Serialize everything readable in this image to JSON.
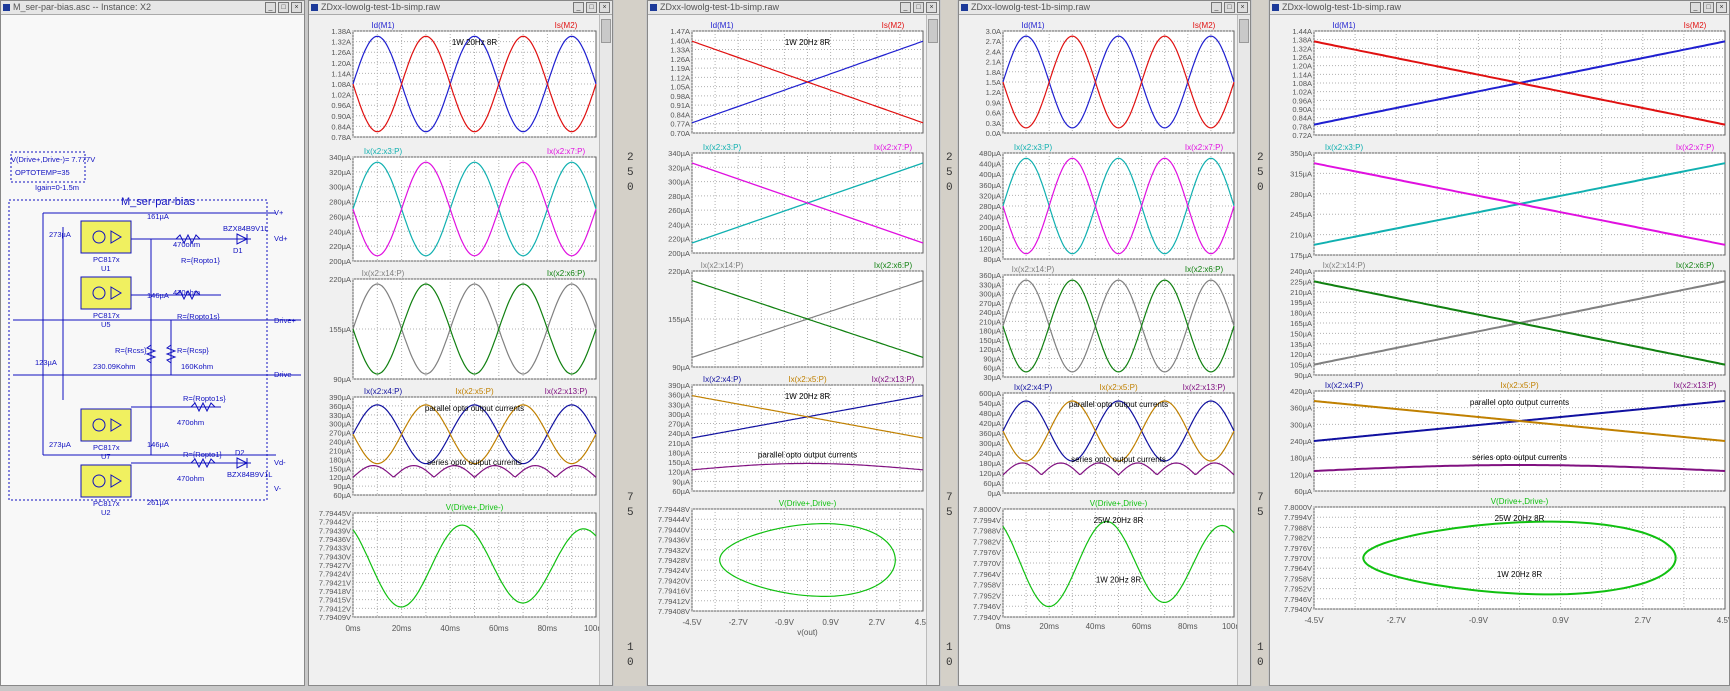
{
  "schematic": {
    "title": "M_ser-par-bias.asc -- Instance: X2",
    "top_label": "V(Drive+,Drive-)= 7.777V",
    "param1": "OPTOTEMP=35",
    "param2": "Igain=0-1.5m",
    "heading": "M_ser-par-bias",
    "labels": {
      "i1": "273µA",
      "i2": "161µA",
      "i3": "146µA",
      "i4": "123µA",
      "i5": "273µA",
      "i6": "146µA",
      "i7": "261µA",
      "u1": "PC817x",
      "u1n": "U1",
      "u5": "PC817x",
      "u5n": "U5",
      "u7": "PC817x",
      "u7n": "U7",
      "u2": "PC817x",
      "u2n": "U2",
      "r1": "470ohm",
      "r1v": "R={Ropto1}",
      "r2": "470ohm",
      "r2v": "R={Ropto1s}",
      "r3": "R={Rcss}",
      "r3v": "230.09Kohm",
      "r4": "R={Rcsp}",
      "r4v": "160Kohm",
      "r5v": "R={Ropto1s}",
      "r5": "470ohm",
      "r6v": "R={Ropto1}",
      "r6": "470ohm",
      "d1": "BZX84B9V1L",
      "d1n": "D1",
      "d2": "D2",
      "d2n": "BZX84B9V1L",
      "vp": "V+",
      "vdp": "Vd+",
      "dp": "Drive+",
      "dm": "Drive-",
      "vdm": "Vd-",
      "vm": "V-"
    }
  },
  "waves": [
    {
      "title": "ZDxx-lowolg-test-1b-simp.raw",
      "x_axis": "time",
      "x_ticks": [
        "0ms",
        "20ms",
        "40ms",
        "60ms",
        "80ms",
        "100ms"
      ],
      "x_label": "",
      "panes": [
        {
          "traces": [
            {
              "name": "Id(M1)",
              "color": "#1f1fd0"
            },
            {
              "name": "Is(M2)",
              "color": "#e01010"
            }
          ],
          "ticks": [
            "1.38A",
            "1.32A",
            "1.26A",
            "1.20A",
            "1.14A",
            "1.08A",
            "1.02A",
            "0.96A",
            "0.90A",
            "0.84A",
            "0.78A"
          ],
          "annotations": [
            "1W 20Hz 8R"
          ]
        },
        {
          "traces": [
            {
              "name": "Ix(x2:x3:P)",
              "color": "#10b0b0"
            },
            {
              "name": "Ix(x2:x7:P)",
              "color": "#e010e0"
            }
          ],
          "ticks": [
            "340µA",
            "320µA",
            "300µA",
            "280µA",
            "260µA",
            "240µA",
            "220µA",
            "200µA"
          ],
          "annotations": []
        },
        {
          "traces": [
            {
              "name": "Ix(x2:x14:P)",
              "color": "#808080"
            },
            {
              "name": "Ix(x2:x6:P)",
              "color": "#108010"
            }
          ],
          "ticks": [
            "220µA",
            "155µA",
            "90µA"
          ],
          "annotations": []
        },
        {
          "traces": [
            {
              "name": "Ix(x2:x4:P)",
              "color": "#1010a0"
            },
            {
              "name": "Ix(x2:x5:P)",
              "color": "#c08000"
            },
            {
              "name": "Ix(x2:x13:P)",
              "color": "#801080"
            }
          ],
          "ticks": [
            "390µA",
            "360µA",
            "330µA",
            "300µA",
            "270µA",
            "240µA",
            "210µA",
            "180µA",
            "150µA",
            "120µA",
            "90µA",
            "60µA"
          ],
          "annotations": [
            "parallel opto output currents",
            "series opto output currents"
          ]
        },
        {
          "traces": [
            {
              "name": "V(Drive+,Drive-)",
              "color": "#10c010"
            }
          ],
          "ticks": [
            "7.79445V",
            "7.79442V",
            "7.79439V",
            "7.79436V",
            "7.79433V",
            "7.79430V",
            "7.79427V",
            "7.79424V",
            "7.79421V",
            "7.79418V",
            "7.79415V",
            "7.79412V",
            "7.79409V"
          ],
          "annotations": []
        }
      ]
    },
    {
      "title": "ZDxx-lowolg-test-1b-simp.raw",
      "x_axis": "xy",
      "x_ticks": [
        "-4.5V",
        "-2.7V",
        "-0.9V",
        "0.9V",
        "2.7V",
        "4.5V"
      ],
      "x_label": "v(out)",
      "panes": [
        {
          "traces": [
            {
              "name": "Id(M1)",
              "color": "#1f1fd0"
            },
            {
              "name": "Is(M2)",
              "color": "#e01010"
            }
          ],
          "ticks": [
            "1.47A",
            "1.40A",
            "1.33A",
            "1.26A",
            "1.19A",
            "1.12A",
            "1.05A",
            "0.98A",
            "0.91A",
            "0.84A",
            "0.77A",
            "0.70A"
          ],
          "annotations": [
            "1W 20Hz 8R"
          ]
        },
        {
          "traces": [
            {
              "name": "Ix(x2:x3:P)",
              "color": "#10b0b0"
            },
            {
              "name": "Ix(x2:x7:P)",
              "color": "#e010e0"
            }
          ],
          "ticks": [
            "340µA",
            "320µA",
            "300µA",
            "280µA",
            "260µA",
            "240µA",
            "220µA",
            "200µA"
          ],
          "annotations": []
        },
        {
          "traces": [
            {
              "name": "Ix(x2:x14:P)",
              "color": "#808080"
            },
            {
              "name": "Ix(x2:x6:P)",
              "color": "#108010"
            }
          ],
          "ticks": [
            "220µA",
            "155µA",
            "90µA"
          ],
          "annotations": []
        },
        {
          "traces": [
            {
              "name": "Ix(x2:x4:P)",
              "color": "#1010a0"
            },
            {
              "name": "Ix(x2:x5:P)",
              "color": "#c08000"
            },
            {
              "name": "Ix(x2:x13:P)",
              "color": "#801080"
            }
          ],
          "ticks": [
            "390µA",
            "360µA",
            "330µA",
            "300µA",
            "270µA",
            "240µA",
            "210µA",
            "180µA",
            "150µA",
            "120µA",
            "90µA",
            "60µA"
          ],
          "annotations": [
            "1W 20Hz 8R",
            "parallel opto output currents",
            "series opto output currents"
          ]
        },
        {
          "traces": [
            {
              "name": "V(Drive+,Drive-)",
              "color": "#10c010"
            }
          ],
          "ticks": [
            "7.79448V",
            "7.79444V",
            "7.79440V",
            "7.79436V",
            "7.79432V",
            "7.79428V",
            "7.79424V",
            "7.79420V",
            "7.79416V",
            "7.79412V",
            "7.79408V"
          ],
          "annotations": []
        }
      ]
    },
    {
      "title": "ZDxx-lowolg-test-1b-simp.raw",
      "x_axis": "time",
      "x_ticks": [
        "0ms",
        "20ms",
        "40ms",
        "60ms",
        "80ms",
        "100ms"
      ],
      "x_label": "",
      "panes": [
        {
          "traces": [
            {
              "name": "Id(M1)",
              "color": "#1f1fd0"
            },
            {
              "name": "Is(M2)",
              "color": "#e01010"
            }
          ],
          "ticks": [
            "3.0A",
            "2.7A",
            "2.4A",
            "2.1A",
            "1.8A",
            "1.5A",
            "1.2A",
            "0.9A",
            "0.6A",
            "0.3A",
            "0.0A"
          ],
          "annotations": []
        },
        {
          "traces": [
            {
              "name": "Ix(x2:x3:P)",
              "color": "#10b0b0"
            },
            {
              "name": "Ix(x2:x7:P)",
              "color": "#e010e0"
            }
          ],
          "ticks": [
            "480µA",
            "440µA",
            "400µA",
            "360µA",
            "320µA",
            "280µA",
            "240µA",
            "200µA",
            "160µA",
            "120µA",
            "80µA"
          ],
          "annotations": []
        },
        {
          "traces": [
            {
              "name": "Ix(x2:x14:P)",
              "color": "#808080"
            },
            {
              "name": "Ix(x2:x6:P)",
              "color": "#108010"
            }
          ],
          "ticks": [
            "360µA",
            "330µA",
            "300µA",
            "270µA",
            "240µA",
            "210µA",
            "180µA",
            "150µA",
            "120µA",
            "90µA",
            "60µA",
            "30µA"
          ],
          "annotations": []
        },
        {
          "traces": [
            {
              "name": "Ix(x2:x4:P)",
              "color": "#1010a0"
            },
            {
              "name": "Ix(x2:x5:P)",
              "color": "#c08000"
            },
            {
              "name": "Ix(x2:x13:P)",
              "color": "#801080"
            }
          ],
          "ticks": [
            "600µA",
            "540µA",
            "480µA",
            "420µA",
            "360µA",
            "300µA",
            "240µA",
            "180µA",
            "120µA",
            "60µA",
            "0µA"
          ],
          "annotations": [
            "parallel opto output currents",
            "series opto output currents"
          ]
        },
        {
          "traces": [
            {
              "name": "V(Drive+,Drive-)",
              "color": "#10c010"
            }
          ],
          "ticks": [
            "7.8000V",
            "7.7994V",
            "7.7988V",
            "7.7982V",
            "7.7976V",
            "7.7970V",
            "7.7964V",
            "7.7958V",
            "7.7952V",
            "7.7946V",
            "7.7940V"
          ],
          "annotations": [
            "25W 20Hz 8R",
            "1W 20Hz 8R"
          ]
        }
      ]
    },
    {
      "title": "ZDxx-lowolg-test-1b-simp.raw",
      "x_axis": "xy",
      "x_ticks": [
        "-4.5V",
        "-2.7V",
        "-0.9V",
        "0.9V",
        "2.7V",
        "4.5V"
      ],
      "x_label": "",
      "panes": [
        {
          "traces": [
            {
              "name": "Id(M1)",
              "color": "#1f1fd0"
            },
            {
              "name": "Is(M2)",
              "color": "#e01010"
            }
          ],
          "ticks": [
            "1.44A",
            "1.38A",
            "1.32A",
            "1.26A",
            "1.20A",
            "1.14A",
            "1.08A",
            "1.02A",
            "0.96A",
            "0.90A",
            "0.84A",
            "0.78A",
            "0.72A"
          ],
          "annotations": []
        },
        {
          "traces": [
            {
              "name": "Ix(x2:x3:P)",
              "color": "#10b0b0"
            },
            {
              "name": "Ix(x2:x7:P)",
              "color": "#e010e0"
            }
          ],
          "ticks": [
            "350µA",
            "315µA",
            "280µA",
            "245µA",
            "210µA",
            "175µA"
          ],
          "annotations": []
        },
        {
          "traces": [
            {
              "name": "Ix(x2:x14:P)",
              "color": "#808080"
            },
            {
              "name": "Ix(x2:x6:P)",
              "color": "#108010"
            }
          ],
          "ticks": [
            "240µA",
            "225µA",
            "210µA",
            "195µA",
            "180µA",
            "165µA",
            "150µA",
            "135µA",
            "120µA",
            "105µA",
            "90µA"
          ],
          "annotations": []
        },
        {
          "traces": [
            {
              "name": "Ix(x2:x4:P)",
              "color": "#1010a0"
            },
            {
              "name": "Ix(x2:x5:P)",
              "color": "#c08000"
            },
            {
              "name": "Ix(x2:x13:P)",
              "color": "#801080"
            }
          ],
          "ticks": [
            "420µA",
            "360µA",
            "300µA",
            "240µA",
            "180µA",
            "120µA",
            "60µA"
          ],
          "annotations": [
            "parallel opto output currents",
            "series opto output currents"
          ]
        },
        {
          "traces": [
            {
              "name": "V(Drive+,Drive-)",
              "color": "#10c010"
            }
          ],
          "ticks": [
            "7.8000V",
            "7.7994V",
            "7.7988V",
            "7.7982V",
            "7.7976V",
            "7.7970V",
            "7.7964V",
            "7.7958V",
            "7.7952V",
            "7.7946V",
            "7.7940V"
          ],
          "annotations": [
            "25W 20Hz 8R",
            "1W 20Hz 8R"
          ]
        }
      ]
    }
  ],
  "gap_digits": [
    "2",
    "5",
    "0",
    "7",
    "5",
    "1",
    "0"
  ]
}
